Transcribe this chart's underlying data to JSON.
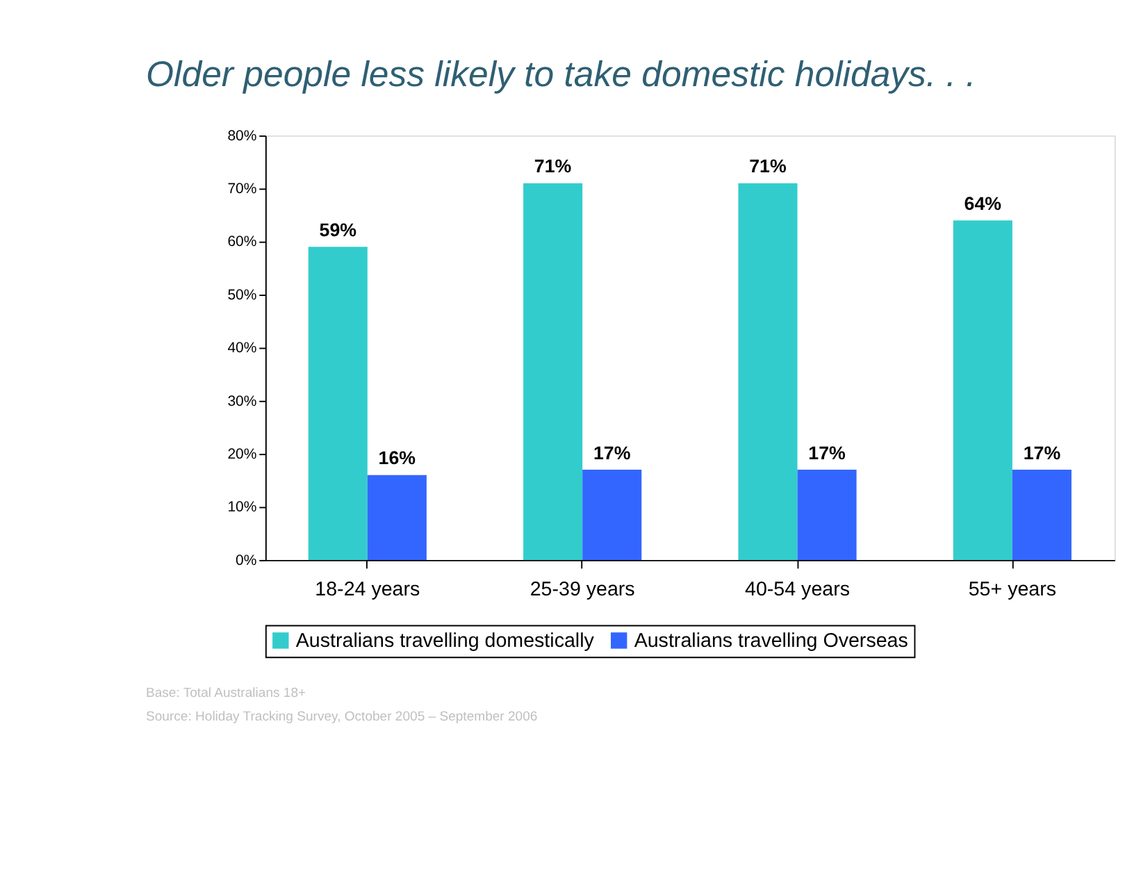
{
  "chart_data": {
    "type": "bar",
    "title": "Older people less likely to take domestic holidays. . .",
    "categories": [
      "18-24 years",
      "25-39 years",
      "40-54 years",
      "55+ years"
    ],
    "series": [
      {
        "name": "Australians travelling domestically",
        "color": "#33cccc",
        "values": [
          59,
          71,
          71,
          64
        ],
        "value_labels": [
          "59%",
          "71%",
          "71%",
          "64%"
        ]
      },
      {
        "name": "Australians travelling Overseas",
        "color": "#3366ff",
        "values": [
          16,
          17,
          17,
          17
        ],
        "value_labels": [
          "16%",
          "17%",
          "17%",
          "17%"
        ]
      }
    ],
    "ylim": [
      0,
      80
    ],
    "yticks": [
      {
        "value": 0,
        "label": "0%"
      },
      {
        "value": 10,
        "label": "10%"
      },
      {
        "value": 20,
        "label": "20%"
      },
      {
        "value": 30,
        "label": "30%"
      },
      {
        "value": 40,
        "label": "40%"
      },
      {
        "value": 50,
        "label": "50%"
      },
      {
        "value": 60,
        "label": "60%"
      },
      {
        "value": 70,
        "label": "70%"
      },
      {
        "value": 80,
        "label": "80%"
      }
    ],
    "grid": false,
    "legend": "bottom",
    "annotations": [
      "Base: Total Australians 18+",
      "Source: Holiday Tracking Survey, October 2005 – September 2006"
    ]
  }
}
